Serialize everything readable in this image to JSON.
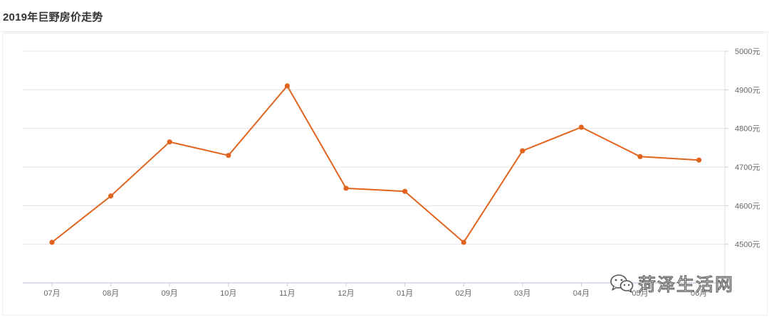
{
  "page_title": "2019年巨野房价走势",
  "watermark": {
    "text": "菏泽生活网",
    "icon": "wechat-icon"
  },
  "chart_data": {
    "type": "line",
    "title": "2019年巨野房价走势",
    "categories": [
      "07月",
      "08月",
      "09月",
      "10月",
      "11月",
      "12月",
      "01月",
      "02月",
      "03月",
      "04月",
      "05月",
      "06月"
    ],
    "values": [
      4505,
      4625,
      4765,
      4730,
      4910,
      4645,
      4637,
      4505,
      4742,
      4803,
      4727,
      4718
    ],
    "y_ticks": [
      4500,
      4600,
      4700,
      4800,
      4900,
      5000
    ],
    "y_tick_labels": [
      "4500元",
      "4600元",
      "4700元",
      "4800元",
      "4900元",
      "5000元"
    ],
    "ylim": [
      4400,
      5000
    ],
    "y_axis_side": "right",
    "grid": true,
    "line_color": "#e0641e",
    "grid_color": "#e6e0ea",
    "axis_label_color": "#666666"
  }
}
